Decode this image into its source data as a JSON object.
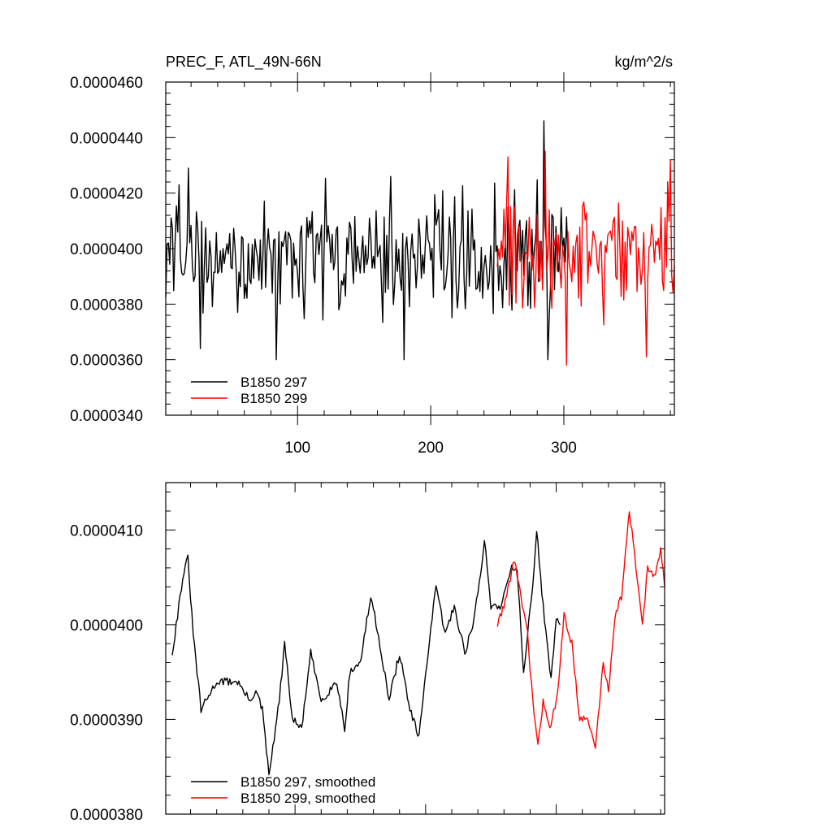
{
  "chart_data": [
    {
      "type": "line",
      "title_left": "PREC_F, ATL_49N-66N",
      "title_right": "kg/m^2/s",
      "xlabel": "",
      "ylabel": "",
      "xlim": [
        1,
        383
      ],
      "ylim": [
        3.4e-05,
        4.6e-05
      ],
      "yticks": [
        3.4e-05,
        3.6e-05,
        3.8e-05,
        4e-05,
        4.2e-05,
        4.4e-05,
        4.6e-05
      ],
      "ytick_labels": [
        "0.0000340",
        "0.0000360",
        "0.0000380",
        "0.0000400",
        "0.0000420",
        "0.0000440",
        "0.0000460"
      ],
      "xticks": [
        100,
        200,
        300
      ],
      "xtick_labels": [
        "100",
        "200",
        "300"
      ],
      "legend": {
        "placement": "bottom-left"
      },
      "series": [
        {
          "name": "B1850 297",
          "color": "#000000",
          "x_start": 1,
          "x_end": 303,
          "mean": 3.98e-05,
          "amplitude": 2.8e-06,
          "seed": 297,
          "highlights": [
            [
              11,
              4.23e-05
            ],
            [
              18,
              4.29e-05
            ],
            [
              27,
              3.64e-05
            ],
            [
              84,
              3.6e-05
            ],
            [
              170,
              4.26e-05
            ],
            [
              180,
              3.6e-05
            ],
            [
              285,
              4.46e-05
            ],
            [
              288,
              3.6e-05
            ]
          ]
        },
        {
          "name": "B1850 299",
          "color": "#ff0000",
          "x_start": 250,
          "x_end": 383,
          "mean": 3.98e-05,
          "amplitude": 3e-06,
          "seed": 299,
          "highlights": [
            [
              258,
              4.33e-05
            ],
            [
              302,
              3.58e-05
            ],
            [
              286,
              4.35e-05
            ],
            [
              380,
              4.32e-05
            ],
            [
              362,
              3.61e-05
            ],
            [
              382,
              3.84e-05
            ]
          ]
        }
      ]
    },
    {
      "type": "line",
      "xlabel": "",
      "ylabel": "",
      "xlim": [
        1,
        383
      ],
      "ylim": [
        3.8e-05,
        4.15e-05
      ],
      "yticks": [
        3.8e-05,
        3.9e-05,
        4e-05,
        4.1e-05
      ],
      "ytick_labels": [
        "0.0000380",
        "0.0000390",
        "0.0000400",
        "0.0000410"
      ],
      "xticks": [
        100,
        200,
        300
      ],
      "xtick_labels": [],
      "legend": {
        "placement": "bottom-left"
      },
      "series": [
        {
          "name": "B1850 297, smoothed",
          "color": "#000000",
          "anchors": [
            [
              6,
              3.97e-05
            ],
            [
              14,
              4.05e-05
            ],
            [
              18,
              4.07e-05
            ],
            [
              22,
              3.99e-05
            ],
            [
              25,
              3.95e-05
            ],
            [
              28,
              3.91e-05
            ],
            [
              40,
              3.94e-05
            ],
            [
              56,
              3.94e-05
            ],
            [
              65,
              3.92e-05
            ],
            [
              70,
              3.93e-05
            ],
            [
              75,
              3.91e-05
            ],
            [
              80,
              3.84e-05
            ],
            [
              88,
              3.92e-05
            ],
            [
              92,
              3.98e-05
            ],
            [
              98,
              3.9e-05
            ],
            [
              105,
              3.89e-05
            ],
            [
              112,
              3.97e-05
            ],
            [
              120,
              3.92e-05
            ],
            [
              132,
              3.94e-05
            ],
            [
              138,
              3.89e-05
            ],
            [
              142,
              3.95e-05
            ],
            [
              150,
              3.96e-05
            ],
            [
              158,
              4.03e-05
            ],
            [
              165,
              3.98e-05
            ],
            [
              172,
              3.92e-05
            ],
            [
              180,
              3.97e-05
            ],
            [
              188,
              3.91e-05
            ],
            [
              195,
              3.88e-05
            ],
            [
              200,
              3.95e-05
            ],
            [
              208,
              4.04e-05
            ],
            [
              215,
              3.99e-05
            ],
            [
              222,
              4.02e-05
            ],
            [
              230,
              3.97e-05
            ],
            [
              236,
              4e-05
            ],
            [
              242,
              4.05e-05
            ],
            [
              245,
              4.09e-05
            ],
            [
              250,
              4.02e-05
            ],
            [
              258,
              4.02e-05
            ],
            [
              265,
              4.06e-05
            ],
            [
              270,
              4.06e-05
            ],
            [
              275,
              3.95e-05
            ],
            [
              282,
              4.04e-05
            ],
            [
              285,
              4.1e-05
            ],
            [
              290,
              4.02e-05
            ],
            [
              296,
              3.94e-05
            ],
            [
              300,
              4.01e-05
            ],
            [
              303,
              4e-05
            ]
          ]
        },
        {
          "name": "B1850 299, smoothed",
          "color": "#ff0000",
          "anchors": [
            [
              255,
              4e-05
            ],
            [
              262,
              4.03e-05
            ],
            [
              268,
              4.07e-05
            ],
            [
              274,
              4.02e-05
            ],
            [
              278,
              3.99e-05
            ],
            [
              282,
              3.92e-05
            ],
            [
              286,
              3.87e-05
            ],
            [
              290,
              3.92e-05
            ],
            [
              296,
              3.89e-05
            ],
            [
              302,
              3.94e-05
            ],
            [
              306,
              4.01e-05
            ],
            [
              312,
              3.98e-05
            ],
            [
              318,
              3.9e-05
            ],
            [
              324,
              3.9e-05
            ],
            [
              330,
              3.87e-05
            ],
            [
              336,
              3.96e-05
            ],
            [
              340,
              3.93e-05
            ],
            [
              345,
              4.01e-05
            ],
            [
              350,
              4.03e-05
            ],
            [
              356,
              4.12e-05
            ],
            [
              362,
              4.05e-05
            ],
            [
              366,
              4e-05
            ],
            [
              370,
              4.06e-05
            ],
            [
              376,
              4.05e-05
            ],
            [
              380,
              4.08e-05
            ],
            [
              383,
              4.04e-05
            ]
          ]
        }
      ]
    }
  ]
}
